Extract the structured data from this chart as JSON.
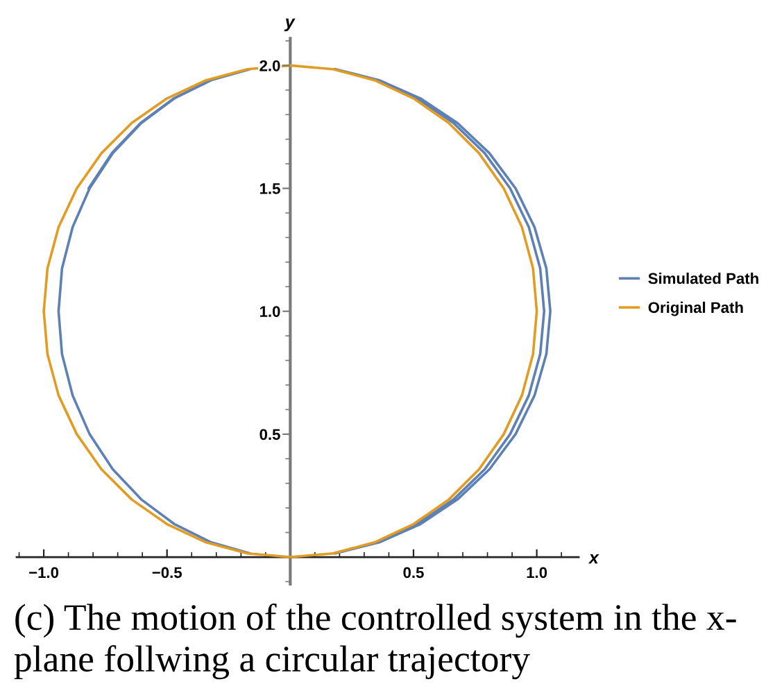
{
  "chart_data": {
    "type": "line",
    "xlabel": "x",
    "ylabel": "y",
    "xlim": [
      -1.11,
      1.17
    ],
    "ylim": [
      -0.11,
      2.11
    ],
    "xticks": [
      {
        "value": -1,
        "label": "−1.0"
      },
      {
        "value": -0.5,
        "label": "−0.5"
      },
      0.5,
      {
        "value": 1,
        "label": "1.0"
      }
    ],
    "yticks": [
      0.5,
      {
        "value": 1,
        "label": "1.0"
      },
      1.5,
      {
        "value": 2,
        "label": "2.0"
      }
    ],
    "legend": "right",
    "series": [
      {
        "name": "Simulated Path",
        "color": "#5e81b5",
        "x": [
          0.179,
          0.352,
          0.515,
          0.662,
          0.789,
          0.892,
          0.968,
          1.014,
          1.03,
          1.014,
          0.968,
          0.892,
          0.789,
          0.662,
          0.515,
          0.352,
          0.179,
          null,
          -0.164,
          -0.321,
          -0.47,
          -0.604,
          -0.72,
          -0.814,
          -0.883,
          -0.926,
          -0.94,
          -0.926,
          -0.883,
          -0.814,
          -0.72,
          -0.604,
          -0.47,
          -0.321,
          -0.164,
          null,
          0.183,
          0.361,
          0.528,
          0.678,
          0.808,
          0.914,
          0.991,
          1.039,
          1.055,
          1.039,
          0.991,
          0.914,
          0.808,
          0.678,
          0.528,
          0.361,
          0.183,
          null,
          -0.164,
          -0.323,
          -0.473,
          -0.607,
          -0.724,
          -0.818
        ],
        "values": [
          0.015,
          0.06,
          0.134,
          0.234,
          0.357,
          0.5,
          0.658,
          0.826,
          1,
          1.174,
          1.342,
          1.5,
          1.643,
          1.766,
          1.866,
          1.94,
          1.985,
          null,
          1.985,
          1.94,
          1.866,
          1.766,
          1.643,
          1.5,
          1.342,
          1.174,
          1,
          0.826,
          0.658,
          0.5,
          0.357,
          0.234,
          0.134,
          0.06,
          0.015,
          null,
          0.015,
          0.06,
          0.134,
          0.234,
          0.357,
          0.5,
          0.658,
          0.826,
          1,
          1.174,
          1.342,
          1.5,
          1.643,
          1.766,
          1.866,
          1.94,
          1.985,
          null,
          1.985,
          1.94,
          1.866,
          1.766,
          1.643,
          1.5
        ]
      },
      {
        "name": "Original Path",
        "color": "#e19c24",
        "x": [
          0,
          0.174,
          0.342,
          0.5,
          0.643,
          0.766,
          0.866,
          0.94,
          0.985,
          1,
          0.985,
          0.94,
          0.866,
          0.766,
          0.643,
          0.5,
          0.342,
          0.174,
          0,
          -0.174,
          -0.342,
          -0.5,
          -0.643,
          -0.766,
          -0.866,
          -0.94,
          -0.985,
          -1,
          -0.985,
          -0.94,
          -0.866,
          -0.766,
          -0.643,
          -0.5,
          -0.342,
          -0.174,
          0,
          0.174
        ],
        "values": [
          0,
          0.015,
          0.06,
          0.134,
          0.234,
          0.357,
          0.5,
          0.658,
          0.826,
          1,
          1.174,
          1.342,
          1.5,
          1.643,
          1.766,
          1.866,
          1.94,
          1.985,
          2,
          1.985,
          1.94,
          1.866,
          1.766,
          1.643,
          1.5,
          1.342,
          1.174,
          1,
          0.826,
          0.658,
          0.5,
          0.357,
          0.234,
          0.134,
          0.06,
          0.015,
          0,
          0.015
        ]
      }
    ],
    "annotations": [
      "(c) The motion of the controlled system in the x-\nplane follwing a circular trajectory"
    ]
  }
}
